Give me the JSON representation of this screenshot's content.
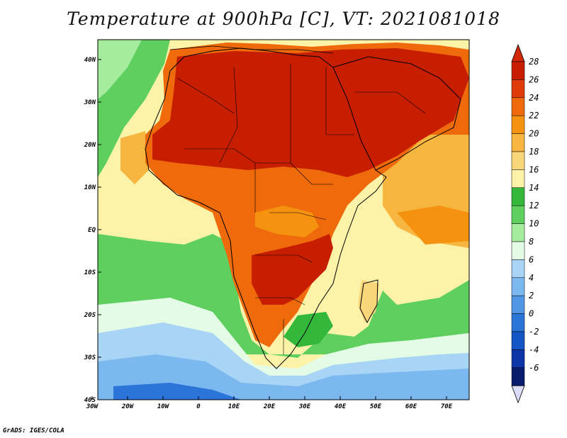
{
  "title": "Temperature at 900hPa [C], VT: 2021081018",
  "credit": "GrADS: IGES/COLA",
  "lon_labels": [
    "30W",
    "20W",
    "10W",
    "0",
    "10E",
    "20E",
    "30E",
    "40E",
    "50E",
    "60E",
    "70E"
  ],
  "lat_labels": [
    "40N",
    "30N",
    "20N",
    "10N",
    "EQ",
    "10S",
    "20S",
    "30S",
    "40S"
  ],
  "colorbar": {
    "levels": [
      "28",
      "26",
      "24",
      "22",
      "20",
      "18",
      "16",
      "14",
      "12",
      "10",
      "8",
      "6",
      "4",
      "2",
      "0",
      "-2",
      "-4",
      "-6"
    ],
    "colors": [
      "#c81e00",
      "#e03c0a",
      "#ee6a0a",
      "#f5920f",
      "#f7b640",
      "#fad67a",
      "#fdf3a8",
      "#34b83c",
      "#5fd060",
      "#a6ec9e",
      "#e4fbe6",
      "#a8d4f6",
      "#7cb8f0",
      "#5296e6",
      "#2b74d8",
      "#1556c6",
      "#0e36a8",
      "#081c6e"
    ],
    "top_color": "#d02808",
    "bottom_color": "#dcdcf8"
  },
  "map_colors": {
    "ocean_cool": "#5fd060",
    "ocean_mild": "#fdf3a8",
    "ocean_warm": "#f7b640",
    "southern_cold": "#7cb8f0",
    "southern_colder": "#5296e6",
    "southern_coldest": "#1556c6",
    "land_hot": "#c81e00",
    "land_warm": "#ee6a0a",
    "land_mild": "#f5920f"
  }
}
